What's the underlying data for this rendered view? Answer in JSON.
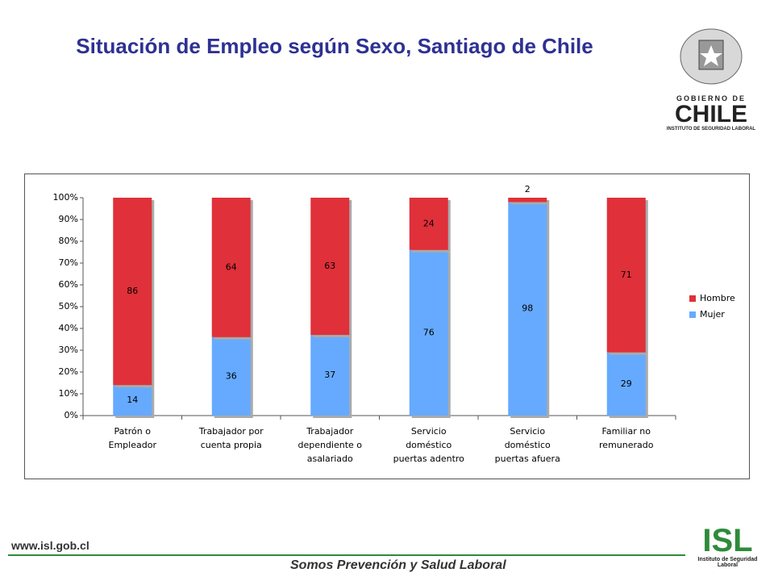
{
  "header": {
    "title": "Situación de Empleo según Sexo, Santiago de Chile",
    "logo_top": "GOBIERNO DE",
    "logo_main": "CHILE",
    "logo_sub": "INSTITUTO DE SEGURIDAD LABORAL"
  },
  "footer": {
    "url": "www.isl.gob.cl",
    "slogan": "Somos Prevención y Salud Laboral",
    "logo_main": "ISL",
    "logo_sub": "Instituto de Seguridad Laboral"
  },
  "chart_data": {
    "type": "stacked_bar",
    "categories": [
      "Patrón o Empleador",
      "Trabajador por cuenta propia",
      "Trabajador dependiente o asalariado",
      "Servicio doméstico puertas adentro",
      "Servicio doméstico puertas afuera",
      "Familiar no remunerado"
    ],
    "series": [
      {
        "name": "Hombre",
        "color": "#e0303a",
        "values": [
          86,
          64,
          63,
          24,
          2,
          71
        ]
      },
      {
        "name": "Mujer",
        "color": "#66aaff",
        "values": [
          14,
          36,
          37,
          76,
          98,
          29
        ]
      }
    ],
    "ylim": [
      0,
      100
    ],
    "yticks": [
      {
        "value": 0,
        "label": "0%"
      },
      {
        "value": 10,
        "label": "10%"
      },
      {
        "value": 20,
        "label": "20%"
      },
      {
        "value": 30,
        "label": "30%"
      },
      {
        "value": 40,
        "label": "40%"
      },
      {
        "value": 50,
        "label": "50%"
      },
      {
        "value": 60,
        "label": "60%"
      },
      {
        "value": 70,
        "label": "70%"
      },
      {
        "value": 80,
        "label": "80%"
      },
      {
        "value": 90,
        "label": "90%"
      },
      {
        "value": 100,
        "label": "100%"
      }
    ],
    "legend": "right"
  }
}
